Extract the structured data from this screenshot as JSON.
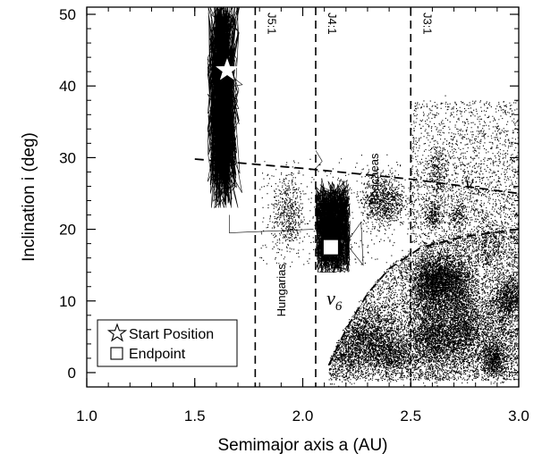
{
  "chart_data": {
    "type": "scatter",
    "xlabel": "Semimajor axis a (AU)",
    "ylabel": "Inclination i (deg)",
    "xlim": [
      1.0,
      3.0
    ],
    "ylim": [
      -2,
      51
    ],
    "xticks": [
      1.0,
      1.5,
      2.0,
      2.5,
      3.0
    ],
    "xtick_labels": [
      "1.0",
      "1.5",
      "2.0",
      "2.5",
      "3.0"
    ],
    "yticks": [
      0,
      10,
      20,
      30,
      40,
      50
    ],
    "ytick_labels": [
      "0",
      "10",
      "20",
      "30",
      "40",
      "50"
    ],
    "grid": false,
    "legend_position": "bottom-left",
    "legend": [
      {
        "symbol": "star-icon",
        "label": "Start Position"
      },
      {
        "symbol": "square-icon",
        "label": "Endpoint"
      }
    ],
    "resonances": [
      {
        "label": "J5:1",
        "a": 1.78
      },
      {
        "label": "J4:1",
        "a": 2.06
      },
      {
        "label": "J3:1",
        "a": 2.5
      }
    ],
    "secular_resonances": [
      {
        "base": "ν",
        "sub": "5",
        "a": [
          1.5,
          2.0,
          2.5,
          3.0
        ],
        "i": [
          29.8,
          28.5,
          27,
          25
        ]
      },
      {
        "base": "ν",
        "sub": "6",
        "a": [
          2.12,
          2.2,
          2.3,
          2.4,
          2.55,
          2.75,
          3.0
        ],
        "i": [
          1,
          6,
          11,
          14.5,
          17.5,
          19,
          20
        ]
      }
    ],
    "region_labels": [
      {
        "text": "Hungarias",
        "a": 1.92,
        "i": 11.5
      },
      {
        "text": "Phocaeas",
        "a": 2.35,
        "i": 27
      }
    ],
    "start_position": {
      "a": 1.65,
      "i": 42.2
    },
    "endpoint": {
      "a": 2.13,
      "i": 17.5
    }
  }
}
